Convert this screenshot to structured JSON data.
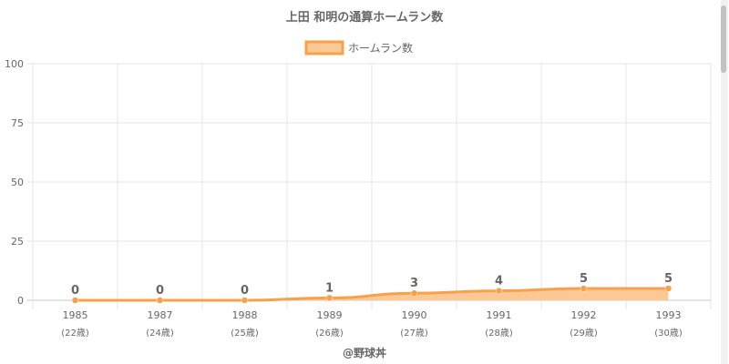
{
  "chart_data": {
    "type": "area",
    "title": "上田 和明の通算ホームラン数",
    "categories": [
      "1985",
      "1987",
      "1988",
      "1989",
      "1990",
      "1991",
      "1992",
      "1993"
    ],
    "category_sublabels": [
      "(22歳)",
      "(24歳)",
      "(25歳)",
      "(26歳)",
      "(27歳)",
      "(28歳)",
      "(29歳)",
      "(30歳)"
    ],
    "series": [
      {
        "name": "ホームラン数",
        "values": [
          0,
          0,
          0,
          1,
          3,
          4,
          5,
          5
        ]
      }
    ],
    "ylim": [
      0,
      100
    ],
    "yticks": [
      0,
      25,
      50,
      75,
      100
    ],
    "grid": true,
    "legend": "top-center",
    "colors": {
      "line": "#f8a14a",
      "fill": "#fbc995",
      "grid": "#e6e6e6",
      "axis": "#c8c8c8"
    },
    "credit": "@野球丼"
  }
}
